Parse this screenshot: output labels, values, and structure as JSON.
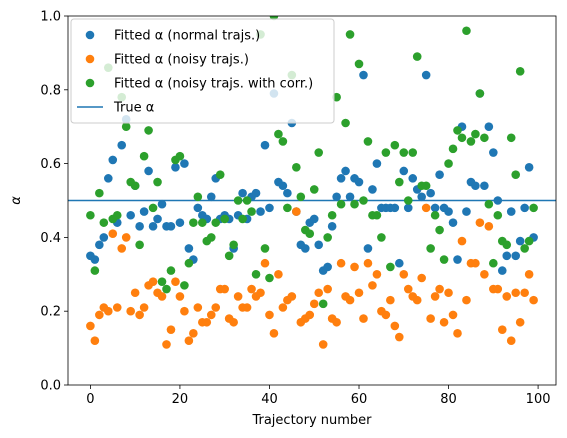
{
  "chart_data": {
    "type": "scatter",
    "xlabel": "Trajectory number",
    "ylabel": "α",
    "xlim": [
      -5,
      104
    ],
    "ylim": [
      0.0,
      1.0
    ],
    "x_ticks": [
      "0",
      "20",
      "40",
      "60",
      "80",
      "100"
    ],
    "x_tick_values": [
      0,
      20,
      40,
      60,
      80,
      100
    ],
    "y_ticks": [
      "0.0",
      "0.2",
      "0.4",
      "0.6",
      "0.8",
      "1.0"
    ],
    "y_tick_values": [
      0.0,
      0.2,
      0.4,
      0.6,
      0.8,
      1.0
    ],
    "legend_position": "upper left",
    "reference_line": {
      "name": "True α",
      "y": 0.5,
      "color": "#1f77b4"
    },
    "series": [
      {
        "name": "Fitted α (normal trajs.)",
        "color": "#1f77b4",
        "x": [
          0,
          1,
          2,
          3,
          4,
          5,
          6,
          7,
          8,
          9,
          10,
          11,
          12,
          13,
          14,
          15,
          16,
          17,
          18,
          19,
          20,
          21,
          22,
          23,
          24,
          25,
          26,
          27,
          28,
          29,
          30,
          31,
          32,
          33,
          34,
          35,
          36,
          37,
          38,
          39,
          40,
          41,
          42,
          43,
          44,
          45,
          46,
          47,
          48,
          49,
          50,
          51,
          52,
          53,
          54,
          55,
          56,
          57,
          58,
          59,
          60,
          61,
          62,
          63,
          64,
          65,
          66,
          67,
          68,
          69,
          70,
          71,
          72,
          73,
          74,
          75,
          76,
          77,
          78,
          79,
          80,
          81,
          82,
          83,
          84,
          85,
          86,
          87,
          88,
          89,
          90,
          91,
          92,
          93,
          94,
          95,
          96,
          97,
          98,
          99
        ],
        "y": [
          0.35,
          0.34,
          0.38,
          0.4,
          0.56,
          0.61,
          0.44,
          0.65,
          0.72,
          0.46,
          0.54,
          0.43,
          0.47,
          0.58,
          0.43,
          0.45,
          0.49,
          0.43,
          0.43,
          0.59,
          0.44,
          0.6,
          0.37,
          0.34,
          0.48,
          0.46,
          0.45,
          0.51,
          0.56,
          0.45,
          0.46,
          0.45,
          0.37,
          0.46,
          0.52,
          0.45,
          0.51,
          0.52,
          0.47,
          0.65,
          0.48,
          0.79,
          0.55,
          0.54,
          0.52,
          0.71,
          0.47,
          0.38,
          0.37,
          0.44,
          0.45,
          0.38,
          0.31,
          0.32,
          0.43,
          0.51,
          0.56,
          0.58,
          0.51,
          0.56,
          0.55,
          0.84,
          0.37,
          0.53,
          0.6,
          0.48,
          0.48,
          0.48,
          0.48,
          0.33,
          0.58,
          0.48,
          0.56,
          0.53,
          0.51,
          0.84,
          0.52,
          0.48,
          0.57,
          0.48,
          0.47,
          0.44,
          0.34,
          0.7,
          0.47,
          0.55,
          0.54,
          0.79,
          0.54,
          0.7,
          0.63,
          0.5,
          0.31,
          0.35,
          0.47,
          0.35,
          0.39,
          0.48,
          0.59,
          0.4
        ]
      },
      {
        "name": "Fitted α (noisy trajs.)",
        "color": "#ff7f0e",
        "x": [
          0,
          1,
          2,
          3,
          4,
          5,
          6,
          7,
          8,
          9,
          10,
          11,
          12,
          13,
          14,
          15,
          16,
          17,
          18,
          19,
          20,
          21,
          22,
          23,
          24,
          25,
          26,
          27,
          28,
          29,
          30,
          31,
          32,
          33,
          34,
          35,
          36,
          37,
          38,
          39,
          40,
          41,
          42,
          43,
          44,
          45,
          46,
          47,
          48,
          49,
          50,
          51,
          52,
          53,
          54,
          55,
          56,
          57,
          58,
          59,
          60,
          61,
          62,
          63,
          64,
          65,
          66,
          67,
          68,
          69,
          70,
          71,
          72,
          73,
          74,
          75,
          76,
          77,
          78,
          79,
          80,
          81,
          82,
          83,
          84,
          85,
          86,
          87,
          88,
          89,
          90,
          91,
          92,
          93,
          94,
          95,
          96,
          97,
          98,
          99
        ],
        "y": [
          0.16,
          0.12,
          0.19,
          0.21,
          0.2,
          0.41,
          0.21,
          0.37,
          0.4,
          0.2,
          0.25,
          0.19,
          0.21,
          0.27,
          0.28,
          0.25,
          0.24,
          0.11,
          0.15,
          0.28,
          0.24,
          0.2,
          0.12,
          0.14,
          0.21,
          0.17,
          0.17,
          0.19,
          0.21,
          0.26,
          0.26,
          0.18,
          0.17,
          0.24,
          0.21,
          0.21,
          0.26,
          0.24,
          0.25,
          0.33,
          0.19,
          0.14,
          0.3,
          0.21,
          0.23,
          0.24,
          0.47,
          0.17,
          0.18,
          0.19,
          0.22,
          0.25,
          0.11,
          0.26,
          0.18,
          0.17,
          0.33,
          0.24,
          0.23,
          0.32,
          0.25,
          0.18,
          0.33,
          0.27,
          0.3,
          0.2,
          0.19,
          0.23,
          0.16,
          0.13,
          0.3,
          0.26,
          0.24,
          0.23,
          0.29,
          0.48,
          0.18,
          0.24,
          0.26,
          0.17,
          0.25,
          0.19,
          0.14,
          0.39,
          0.23,
          0.33,
          0.33,
          0.44,
          0.3,
          0.43,
          0.26,
          0.26,
          0.15,
          0.24,
          0.12,
          0.25,
          0.17,
          0.25,
          0.3,
          0.23
        ]
      },
      {
        "name": "Fitted α (noisy trajs. with corr.)",
        "color": "#2ca02c",
        "x": [
          0,
          1,
          2,
          3,
          4,
          5,
          6,
          7,
          8,
          9,
          10,
          11,
          12,
          13,
          14,
          15,
          16,
          17,
          18,
          19,
          20,
          21,
          22,
          23,
          24,
          25,
          26,
          27,
          28,
          29,
          30,
          31,
          32,
          33,
          34,
          35,
          36,
          37,
          38,
          39,
          40,
          41,
          42,
          43,
          44,
          45,
          46,
          47,
          48,
          49,
          50,
          51,
          52,
          53,
          54,
          55,
          56,
          57,
          58,
          59,
          60,
          61,
          62,
          63,
          64,
          65,
          66,
          67,
          68,
          69,
          70,
          71,
          72,
          73,
          74,
          75,
          76,
          77,
          78,
          79,
          80,
          81,
          82,
          83,
          84,
          85,
          86,
          87,
          88,
          89,
          90,
          91,
          92,
          93,
          94,
          95,
          96,
          97,
          98,
          99
        ],
        "y": [
          0.46,
          0.31,
          0.52,
          0.44,
          0.86,
          0.45,
          0.46,
          0.78,
          0.7,
          0.55,
          0.54,
          0.38,
          0.62,
          0.69,
          0.48,
          0.55,
          0.28,
          0.26,
          0.31,
          0.61,
          0.62,
          0.27,
          0.33,
          0.44,
          0.51,
          0.44,
          0.39,
          0.4,
          0.44,
          0.57,
          0.45,
          0.35,
          0.38,
          0.5,
          0.45,
          0.5,
          0.47,
          0.3,
          0.95,
          0.37,
          0.29,
          1.0,
          0.68,
          0.66,
          0.48,
          0.84,
          0.59,
          0.51,
          0.42,
          0.41,
          0.53,
          0.63,
          0.22,
          0.4,
          0.46,
          0.78,
          0.49,
          0.71,
          0.95,
          0.49,
          0.87,
          0.5,
          0.66,
          0.46,
          0.46,
          0.4,
          0.63,
          0.32,
          0.65,
          0.55,
          0.63,
          0.5,
          0.63,
          0.89,
          0.54,
          0.54,
          0.37,
          0.46,
          0.42,
          0.34,
          0.6,
          0.64,
          0.69,
          0.67,
          0.96,
          0.66,
          0.68,
          0.79,
          0.67,
          0.49,
          0.33,
          0.46,
          0.39,
          0.38,
          0.67,
          0.57,
          0.85,
          0.37,
          0.39,
          0.48
        ]
      }
    ]
  }
}
